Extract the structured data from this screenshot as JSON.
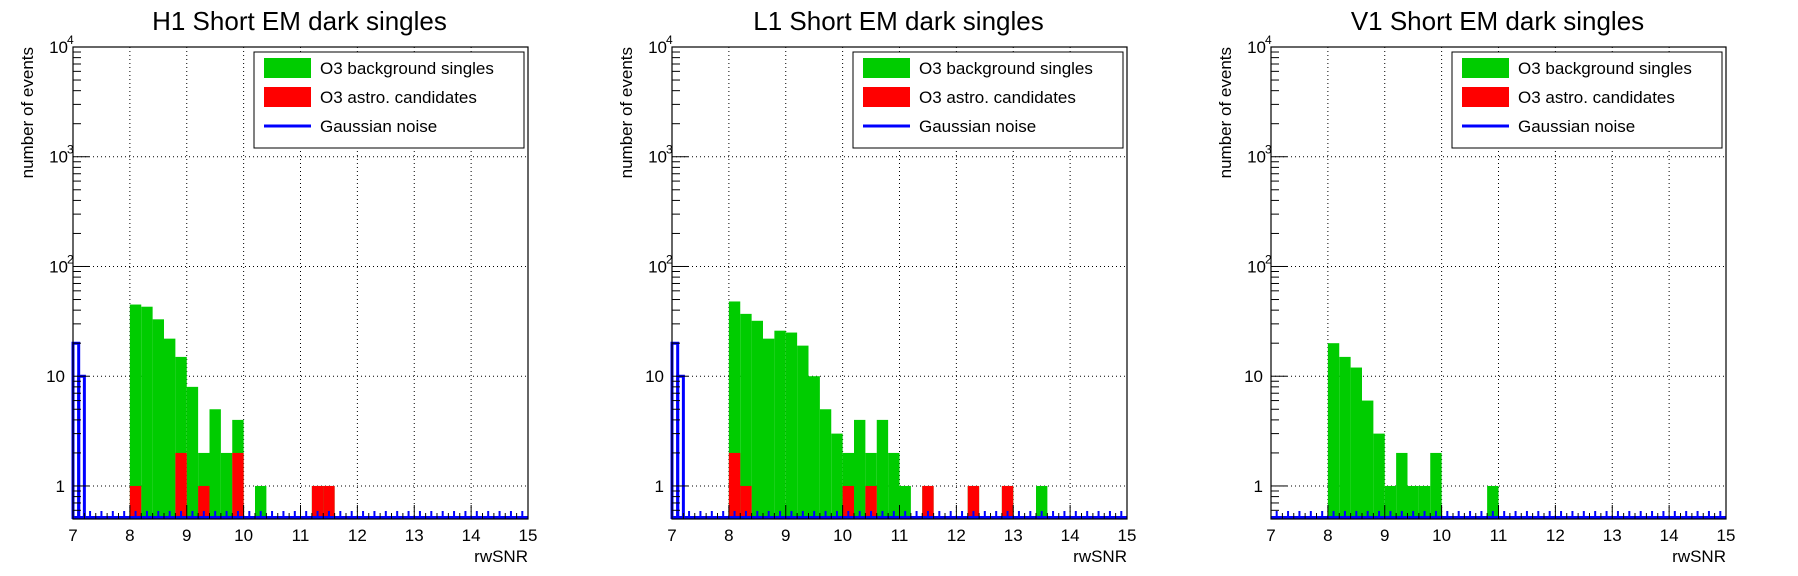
{
  "chart_data": [
    {
      "type": "bar",
      "title": "H1 Short EM dark singles",
      "xlabel": "rwSNR",
      "ylabel": "number of events",
      "xlim": [
        7,
        15
      ],
      "ylim": [
        0.5,
        10000
      ],
      "log_y": true,
      "grid": true,
      "legend_position": "top-right",
      "bin_width": 0.2,
      "x_ticks": [
        "7",
        "8",
        "9",
        "10",
        "11",
        "12",
        "13",
        "14",
        "15"
      ],
      "y_ticks": [
        "1",
        "10",
        "10^2",
        "10^3",
        "10^4"
      ],
      "series": [
        {
          "name": "O3 background singles",
          "kind": "filled",
          "color": "#00cc00",
          "bins": [
            [
              8.0,
              45
            ],
            [
              8.2,
              43
            ],
            [
              8.4,
              33
            ],
            [
              8.6,
              22
            ],
            [
              8.8,
              15
            ],
            [
              9.0,
              8
            ],
            [
              9.2,
              2
            ],
            [
              9.4,
              5
            ],
            [
              9.6,
              2
            ],
            [
              9.8,
              4
            ],
            [
              10.2,
              1
            ],
            [
              11.2,
              1
            ],
            [
              11.4,
              1
            ]
          ]
        },
        {
          "name": "O3 astro. candidates",
          "kind": "filled",
          "color": "#ff0000",
          "bins": [
            [
              8.0,
              1
            ],
            [
              8.8,
              2
            ],
            [
              9.2,
              1
            ],
            [
              9.8,
              2
            ],
            [
              11.2,
              1
            ],
            [
              11.4,
              1
            ]
          ]
        },
        {
          "name": "Gaussian noise",
          "kind": "step",
          "color": "#0000ff",
          "bins": [
            [
              7.0,
              20
            ],
            [
              7.1,
              10
            ]
          ]
        }
      ]
    },
    {
      "type": "bar",
      "title": "L1 Short EM dark singles",
      "xlabel": "rwSNR",
      "ylabel": "number of events",
      "xlim": [
        7,
        15
      ],
      "ylim": [
        0.5,
        10000
      ],
      "log_y": true,
      "grid": true,
      "legend_position": "top-right",
      "bin_width": 0.2,
      "x_ticks": [
        "7",
        "8",
        "9",
        "10",
        "11",
        "12",
        "13",
        "14",
        "15"
      ],
      "y_ticks": [
        "1",
        "10",
        "10^2",
        "10^3",
        "10^4"
      ],
      "series": [
        {
          "name": "O3 background singles",
          "kind": "filled",
          "color": "#00cc00",
          "bins": [
            [
              8.0,
              48
            ],
            [
              8.2,
              37
            ],
            [
              8.4,
              32
            ],
            [
              8.6,
              22
            ],
            [
              8.8,
              26
            ],
            [
              9.0,
              25
            ],
            [
              9.2,
              19
            ],
            [
              9.4,
              10
            ],
            [
              9.6,
              5
            ],
            [
              9.8,
              3
            ],
            [
              10.0,
              2
            ],
            [
              10.2,
              4
            ],
            [
              10.4,
              2
            ],
            [
              10.6,
              4
            ],
            [
              10.8,
              2
            ],
            [
              11.0,
              1
            ],
            [
              11.4,
              1
            ],
            [
              12.2,
              1
            ],
            [
              12.8,
              1
            ],
            [
              13.4,
              1
            ]
          ]
        },
        {
          "name": "O3 astro. candidates",
          "kind": "filled",
          "color": "#ff0000",
          "bins": [
            [
              8.0,
              2
            ],
            [
              8.2,
              1
            ],
            [
              10.0,
              1
            ],
            [
              10.4,
              1
            ],
            [
              11.4,
              1
            ],
            [
              12.2,
              1
            ],
            [
              12.8,
              1
            ]
          ]
        },
        {
          "name": "Gaussian noise",
          "kind": "step",
          "color": "#0000ff",
          "bins": [
            [
              7.0,
              20
            ],
            [
              7.1,
              10
            ]
          ]
        }
      ]
    },
    {
      "type": "bar",
      "title": "V1 Short EM dark singles",
      "xlabel": "rwSNR",
      "ylabel": "number of events",
      "xlim": [
        7,
        15
      ],
      "ylim": [
        0.5,
        10000
      ],
      "log_y": true,
      "grid": true,
      "legend_position": "top-right",
      "bin_width": 0.2,
      "x_ticks": [
        "7",
        "8",
        "9",
        "10",
        "11",
        "12",
        "13",
        "14",
        "15"
      ],
      "y_ticks": [
        "1",
        "10",
        "10^2",
        "10^3",
        "10^4"
      ],
      "series": [
        {
          "name": "O3 background singles",
          "kind": "filled",
          "color": "#00cc00",
          "bins": [
            [
              8.0,
              20
            ],
            [
              8.2,
              15
            ],
            [
              8.4,
              12
            ],
            [
              8.6,
              6
            ],
            [
              8.8,
              3
            ],
            [
              9.0,
              1
            ],
            [
              9.2,
              2
            ],
            [
              9.4,
              1
            ],
            [
              9.6,
              1
            ],
            [
              9.8,
              2
            ],
            [
              10.8,
              1
            ]
          ]
        },
        {
          "name": "O3 astro. candidates",
          "kind": "filled",
          "color": "#ff0000",
          "bins": []
        },
        {
          "name": "Gaussian noise",
          "kind": "step",
          "color": "#0000ff",
          "bins": []
        }
      ]
    }
  ]
}
